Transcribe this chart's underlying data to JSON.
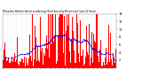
{
  "title": "Milwaukee Weather Actual and Average Wind Speed by Minute mph (Last 24 Hours)",
  "ylim": [
    0,
    14
  ],
  "yticks": [
    2,
    4,
    6,
    8,
    10,
    12,
    14
  ],
  "n_points": 1440,
  "bar_color": "#ff0000",
  "line_color": "#0000ff",
  "grid_color": "#cccccc",
  "bg_color": "#ffffff",
  "seed": 42,
  "x_tick_interval": 60,
  "smooth_window": 90
}
